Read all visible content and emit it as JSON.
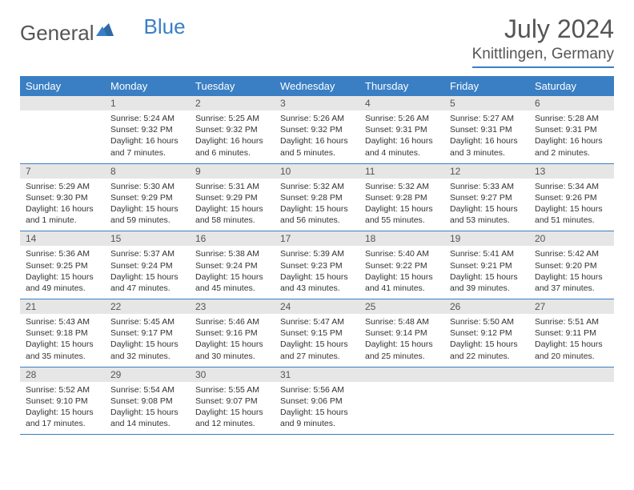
{
  "brand": {
    "part1": "General",
    "part2": "Blue"
  },
  "title": "July 2024",
  "location": "Knittlingen, Germany",
  "colors": {
    "accent": "#3a7fc4",
    "daynum_bg": "#e6e6e6",
    "text": "#555555",
    "body_text": "#333333"
  },
  "day_headers": [
    "Sunday",
    "Monday",
    "Tuesday",
    "Wednesday",
    "Thursday",
    "Friday",
    "Saturday"
  ],
  "weeks": [
    {
      "nums": [
        "",
        "1",
        "2",
        "3",
        "4",
        "5",
        "6"
      ],
      "cells": [
        null,
        {
          "sunrise": "Sunrise: 5:24 AM",
          "sunset": "Sunset: 9:32 PM",
          "daylight": "Daylight: 16 hours and 7 minutes."
        },
        {
          "sunrise": "Sunrise: 5:25 AM",
          "sunset": "Sunset: 9:32 PM",
          "daylight": "Daylight: 16 hours and 6 minutes."
        },
        {
          "sunrise": "Sunrise: 5:26 AM",
          "sunset": "Sunset: 9:32 PM",
          "daylight": "Daylight: 16 hours and 5 minutes."
        },
        {
          "sunrise": "Sunrise: 5:26 AM",
          "sunset": "Sunset: 9:31 PM",
          "daylight": "Daylight: 16 hours and 4 minutes."
        },
        {
          "sunrise": "Sunrise: 5:27 AM",
          "sunset": "Sunset: 9:31 PM",
          "daylight": "Daylight: 16 hours and 3 minutes."
        },
        {
          "sunrise": "Sunrise: 5:28 AM",
          "sunset": "Sunset: 9:31 PM",
          "daylight": "Daylight: 16 hours and 2 minutes."
        }
      ]
    },
    {
      "nums": [
        "7",
        "8",
        "9",
        "10",
        "11",
        "12",
        "13"
      ],
      "cells": [
        {
          "sunrise": "Sunrise: 5:29 AM",
          "sunset": "Sunset: 9:30 PM",
          "daylight": "Daylight: 16 hours and 1 minute."
        },
        {
          "sunrise": "Sunrise: 5:30 AM",
          "sunset": "Sunset: 9:29 PM",
          "daylight": "Daylight: 15 hours and 59 minutes."
        },
        {
          "sunrise": "Sunrise: 5:31 AM",
          "sunset": "Sunset: 9:29 PM",
          "daylight": "Daylight: 15 hours and 58 minutes."
        },
        {
          "sunrise": "Sunrise: 5:32 AM",
          "sunset": "Sunset: 9:28 PM",
          "daylight": "Daylight: 15 hours and 56 minutes."
        },
        {
          "sunrise": "Sunrise: 5:32 AM",
          "sunset": "Sunset: 9:28 PM",
          "daylight": "Daylight: 15 hours and 55 minutes."
        },
        {
          "sunrise": "Sunrise: 5:33 AM",
          "sunset": "Sunset: 9:27 PM",
          "daylight": "Daylight: 15 hours and 53 minutes."
        },
        {
          "sunrise": "Sunrise: 5:34 AM",
          "sunset": "Sunset: 9:26 PM",
          "daylight": "Daylight: 15 hours and 51 minutes."
        }
      ]
    },
    {
      "nums": [
        "14",
        "15",
        "16",
        "17",
        "18",
        "19",
        "20"
      ],
      "cells": [
        {
          "sunrise": "Sunrise: 5:36 AM",
          "sunset": "Sunset: 9:25 PM",
          "daylight": "Daylight: 15 hours and 49 minutes."
        },
        {
          "sunrise": "Sunrise: 5:37 AM",
          "sunset": "Sunset: 9:24 PM",
          "daylight": "Daylight: 15 hours and 47 minutes."
        },
        {
          "sunrise": "Sunrise: 5:38 AM",
          "sunset": "Sunset: 9:24 PM",
          "daylight": "Daylight: 15 hours and 45 minutes."
        },
        {
          "sunrise": "Sunrise: 5:39 AM",
          "sunset": "Sunset: 9:23 PM",
          "daylight": "Daylight: 15 hours and 43 minutes."
        },
        {
          "sunrise": "Sunrise: 5:40 AM",
          "sunset": "Sunset: 9:22 PM",
          "daylight": "Daylight: 15 hours and 41 minutes."
        },
        {
          "sunrise": "Sunrise: 5:41 AM",
          "sunset": "Sunset: 9:21 PM",
          "daylight": "Daylight: 15 hours and 39 minutes."
        },
        {
          "sunrise": "Sunrise: 5:42 AM",
          "sunset": "Sunset: 9:20 PM",
          "daylight": "Daylight: 15 hours and 37 minutes."
        }
      ]
    },
    {
      "nums": [
        "21",
        "22",
        "23",
        "24",
        "25",
        "26",
        "27"
      ],
      "cells": [
        {
          "sunrise": "Sunrise: 5:43 AM",
          "sunset": "Sunset: 9:18 PM",
          "daylight": "Daylight: 15 hours and 35 minutes."
        },
        {
          "sunrise": "Sunrise: 5:45 AM",
          "sunset": "Sunset: 9:17 PM",
          "daylight": "Daylight: 15 hours and 32 minutes."
        },
        {
          "sunrise": "Sunrise: 5:46 AM",
          "sunset": "Sunset: 9:16 PM",
          "daylight": "Daylight: 15 hours and 30 minutes."
        },
        {
          "sunrise": "Sunrise: 5:47 AM",
          "sunset": "Sunset: 9:15 PM",
          "daylight": "Daylight: 15 hours and 27 minutes."
        },
        {
          "sunrise": "Sunrise: 5:48 AM",
          "sunset": "Sunset: 9:14 PM",
          "daylight": "Daylight: 15 hours and 25 minutes."
        },
        {
          "sunrise": "Sunrise: 5:50 AM",
          "sunset": "Sunset: 9:12 PM",
          "daylight": "Daylight: 15 hours and 22 minutes."
        },
        {
          "sunrise": "Sunrise: 5:51 AM",
          "sunset": "Sunset: 9:11 PM",
          "daylight": "Daylight: 15 hours and 20 minutes."
        }
      ]
    },
    {
      "nums": [
        "28",
        "29",
        "30",
        "31",
        "",
        "",
        ""
      ],
      "cells": [
        {
          "sunrise": "Sunrise: 5:52 AM",
          "sunset": "Sunset: 9:10 PM",
          "daylight": "Daylight: 15 hours and 17 minutes."
        },
        {
          "sunrise": "Sunrise: 5:54 AM",
          "sunset": "Sunset: 9:08 PM",
          "daylight": "Daylight: 15 hours and 14 minutes."
        },
        {
          "sunrise": "Sunrise: 5:55 AM",
          "sunset": "Sunset: 9:07 PM",
          "daylight": "Daylight: 15 hours and 12 minutes."
        },
        {
          "sunrise": "Sunrise: 5:56 AM",
          "sunset": "Sunset: 9:06 PM",
          "daylight": "Daylight: 15 hours and 9 minutes."
        },
        null,
        null,
        null
      ]
    }
  ]
}
